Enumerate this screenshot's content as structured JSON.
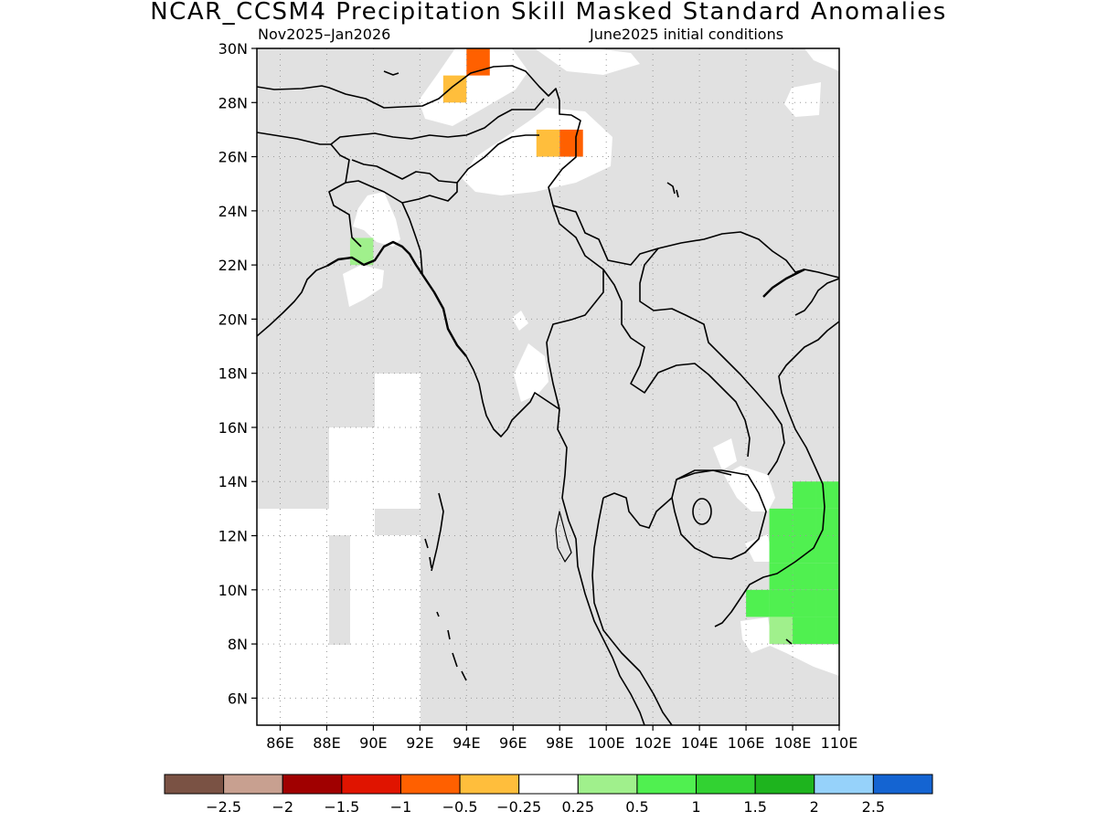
{
  "title": "NCAR_CCSM4 Precipitation Skill Masked Standard Anomalies",
  "subtitle_left": "Nov2025–Jan2026",
  "subtitle_right": "June2025 initial conditions",
  "map": {
    "lon_range": [
      85,
      110
    ],
    "lat_range": [
      5,
      30
    ],
    "land_mask_color": "#e1e1e1",
    "lat_ticks": [
      {
        "value": 6,
        "label": "6N"
      },
      {
        "value": 8,
        "label": "8N"
      },
      {
        "value": 10,
        "label": "10N"
      },
      {
        "value": 12,
        "label": "12N"
      },
      {
        "value": 14,
        "label": "14N"
      },
      {
        "value": 16,
        "label": "16N"
      },
      {
        "value": 18,
        "label": "18N"
      },
      {
        "value": 20,
        "label": "20N"
      },
      {
        "value": 22,
        "label": "22N"
      },
      {
        "value": 24,
        "label": "24N"
      },
      {
        "value": 26,
        "label": "26N"
      },
      {
        "value": 28,
        "label": "28N"
      },
      {
        "value": 30,
        "label": "30N"
      }
    ],
    "lon_ticks": [
      {
        "value": 86,
        "label": "86E"
      },
      {
        "value": 88,
        "label": "88E"
      },
      {
        "value": 90,
        "label": "90E"
      },
      {
        "value": 92,
        "label": "92E"
      },
      {
        "value": 94,
        "label": "94E"
      },
      {
        "value": 96,
        "label": "96E"
      },
      {
        "value": 98,
        "label": "98E"
      },
      {
        "value": 100,
        "label": "100E"
      },
      {
        "value": 102,
        "label": "102E"
      },
      {
        "value": 104,
        "label": "104E"
      },
      {
        "value": 106,
        "label": "106E"
      },
      {
        "value": 108,
        "label": "108E"
      },
      {
        "value": 110,
        "label": "110E"
      }
    ]
  },
  "colorbar": {
    "colors": [
      "#7a5244",
      "#c8a090",
      "#a00000",
      "#e01400",
      "#ff6000",
      "#ffbe3c",
      "#ffffff",
      "#a0f08c",
      "#50f050",
      "#32d232",
      "#1eb41e",
      "#96d2fa",
      "#1464d2"
    ],
    "labels": [
      "−2.5",
      "−2",
      "−1.5",
      "−1",
      "−0.5",
      "−0.25",
      "0.25",
      "0.5",
      "1",
      "1.5",
      "2",
      "2.5"
    ]
  },
  "anomaly_cells": [
    {
      "lon": 94.5,
      "lat": 29.5,
      "color": "#ff6000"
    },
    {
      "lon": 93.5,
      "lat": 28.5,
      "color": "#ffbe3c"
    },
    {
      "lon": 97.5,
      "lat": 26.5,
      "color": "#ffbe3c"
    },
    {
      "lon": 98.5,
      "lat": 26.5,
      "color": "#ff6000"
    },
    {
      "lon": 89.5,
      "lat": 22.5,
      "color": "#a0f08c"
    },
    {
      "lon": 108.5,
      "lat": 13.5,
      "color": "#50f050"
    },
    {
      "lon": 109.5,
      "lat": 13.5,
      "color": "#50f050"
    },
    {
      "lon": 107.5,
      "lat": 12.5,
      "color": "#50f050"
    },
    {
      "lon": 108.5,
      "lat": 12.5,
      "color": "#50f050"
    },
    {
      "lon": 109.5,
      "lat": 12.5,
      "color": "#50f050"
    },
    {
      "lon": 107.5,
      "lat": 11.5,
      "color": "#50f050"
    },
    {
      "lon": 108.5,
      "lat": 11.5,
      "color": "#50f050"
    },
    {
      "lon": 109.5,
      "lat": 11.5,
      "color": "#50f050"
    },
    {
      "lon": 107.5,
      "lat": 10.5,
      "color": "#50f050"
    },
    {
      "lon": 108.5,
      "lat": 10.5,
      "color": "#50f050"
    },
    {
      "lon": 109.5,
      "lat": 10.5,
      "color": "#50f050"
    },
    {
      "lon": 106.5,
      "lat": 9.5,
      "color": "#50f050"
    },
    {
      "lon": 107.5,
      "lat": 9.5,
      "color": "#50f050"
    },
    {
      "lon": 108.5,
      "lat": 9.5,
      "color": "#50f050"
    },
    {
      "lon": 109.5,
      "lat": 9.5,
      "color": "#50f050"
    },
    {
      "lon": 107.5,
      "lat": 8.5,
      "color": "#a0f08c"
    },
    {
      "lon": 108.5,
      "lat": 8.5,
      "color": "#50f050"
    },
    {
      "lon": 109.5,
      "lat": 8.5,
      "color": "#50f050"
    }
  ]
}
